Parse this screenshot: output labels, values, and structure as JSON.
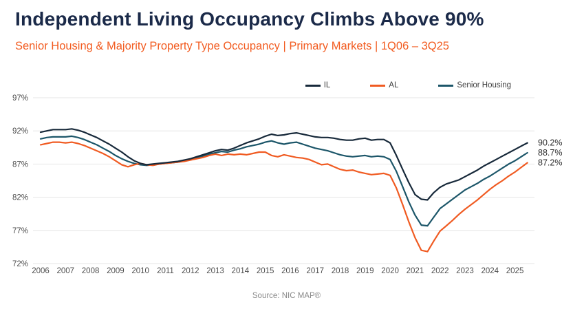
{
  "header": {
    "title": "Independent Living Occupancy Climbs Above 90%",
    "subtitle": "Senior Housing & Majority Property Type Occupancy | Primary Markets | 1Q06 – 3Q25"
  },
  "legend": [
    {
      "label": "IL",
      "color": "#17293a"
    },
    {
      "label": "AL",
      "color": "#f05b22"
    },
    {
      "label": "Senior Housing",
      "color": "#1c5669"
    }
  ],
  "footer": {
    "source": "Source: NIC MAP®"
  },
  "colors": {
    "title": "#1b2a49",
    "subtitle": "#f25c21",
    "grid": "#e6e6e6",
    "tick_text": "#4d4d4d",
    "end_label_text": "#2e2e2e"
  },
  "chart_data": {
    "type": "line",
    "title": "Independent Living Occupancy Climbs Above 90%",
    "subtitle": "Senior Housing & Majority Property Type Occupancy | Primary Markets | 1Q06 – 3Q25",
    "x_unit": "quarter",
    "x_range_label": "1Q06 – 3Q25",
    "x_tick_labels": [
      "2006",
      "2007",
      "2008",
      "2009",
      "2010",
      "2011",
      "2012",
      "2013",
      "2014",
      "2015",
      "2016",
      "2017",
      "2018",
      "2019",
      "2020",
      "2021",
      "2022",
      "2023",
      "2024",
      "2025"
    ],
    "y_tick_labels": [
      "97%",
      "92%",
      "87%",
      "82%",
      "77%",
      "72%"
    ],
    "y_ticks": [
      97,
      92,
      87,
      82,
      77,
      72
    ],
    "ylim": [
      72,
      97
    ],
    "grid": "horizontal",
    "legend_position": "top-right",
    "series": [
      {
        "name": "IL",
        "color": "#17293a",
        "end_label": "90.2%",
        "values": [
          91.8,
          92.0,
          92.2,
          92.2,
          92.2,
          92.3,
          92.1,
          91.8,
          91.4,
          91.0,
          90.5,
          90.0,
          89.4,
          88.8,
          88.1,
          87.5,
          87.1,
          86.9,
          87.0,
          87.1,
          87.2,
          87.3,
          87.4,
          87.6,
          87.8,
          88.1,
          88.4,
          88.7,
          89.0,
          89.2,
          89.1,
          89.4,
          89.8,
          90.2,
          90.5,
          90.8,
          91.2,
          91.5,
          91.3,
          91.4,
          91.6,
          91.7,
          91.5,
          91.3,
          91.1,
          91.0,
          91.0,
          90.9,
          90.7,
          90.6,
          90.6,
          90.8,
          90.9,
          90.6,
          90.7,
          90.7,
          90.2,
          88.3,
          86.2,
          84.2,
          82.4,
          81.7,
          81.6,
          82.7,
          83.5,
          84.0,
          84.3,
          84.6,
          85.1,
          85.6,
          86.1,
          86.7,
          87.2,
          87.7,
          88.2,
          88.7,
          89.2,
          89.7,
          90.2
        ]
      },
      {
        "name": "AL",
        "color": "#f05b22",
        "end_label": "87.2%",
        "values": [
          89.9,
          90.1,
          90.3,
          90.3,
          90.2,
          90.3,
          90.1,
          89.8,
          89.4,
          89.0,
          88.6,
          88.1,
          87.5,
          86.9,
          86.6,
          86.9,
          87.1,
          86.9,
          86.8,
          87.0,
          87.1,
          87.2,
          87.3,
          87.4,
          87.6,
          87.8,
          88.0,
          88.3,
          88.5,
          88.3,
          88.5,
          88.4,
          88.5,
          88.4,
          88.6,
          88.8,
          88.8,
          88.3,
          88.1,
          88.4,
          88.2,
          88.0,
          87.9,
          87.7,
          87.3,
          86.9,
          87.0,
          86.6,
          86.2,
          86.0,
          86.1,
          85.8,
          85.6,
          85.4,
          85.5,
          85.6,
          85.3,
          83.4,
          80.9,
          78.3,
          75.9,
          74.0,
          73.8,
          75.4,
          76.9,
          77.7,
          78.5,
          79.4,
          80.2,
          80.9,
          81.6,
          82.4,
          83.2,
          83.9,
          84.5,
          85.2,
          85.8,
          86.5,
          87.2
        ]
      },
      {
        "name": "Senior Housing",
        "color": "#1c5669",
        "end_label": "88.7%",
        "values": [
          90.8,
          91.0,
          91.1,
          91.1,
          91.1,
          91.2,
          91.0,
          90.7,
          90.3,
          89.9,
          89.4,
          88.9,
          88.3,
          87.8,
          87.4,
          87.1,
          86.9,
          86.8,
          86.9,
          87.0,
          87.1,
          87.2,
          87.3,
          87.5,
          87.7,
          87.9,
          88.2,
          88.5,
          88.7,
          88.9,
          88.8,
          89.1,
          89.3,
          89.6,
          89.8,
          90.0,
          90.3,
          90.5,
          90.2,
          90.0,
          90.2,
          90.3,
          90.0,
          89.7,
          89.4,
          89.2,
          89.0,
          88.7,
          88.4,
          88.2,
          88.1,
          88.2,
          88.3,
          88.1,
          88.2,
          88.1,
          87.7,
          85.9,
          83.6,
          81.3,
          79.3,
          77.8,
          77.7,
          79.0,
          80.3,
          81.0,
          81.7,
          82.4,
          83.1,
          83.6,
          84.1,
          84.7,
          85.2,
          85.8,
          86.4,
          87.0,
          87.5,
          88.1,
          88.7
        ]
      }
    ]
  }
}
